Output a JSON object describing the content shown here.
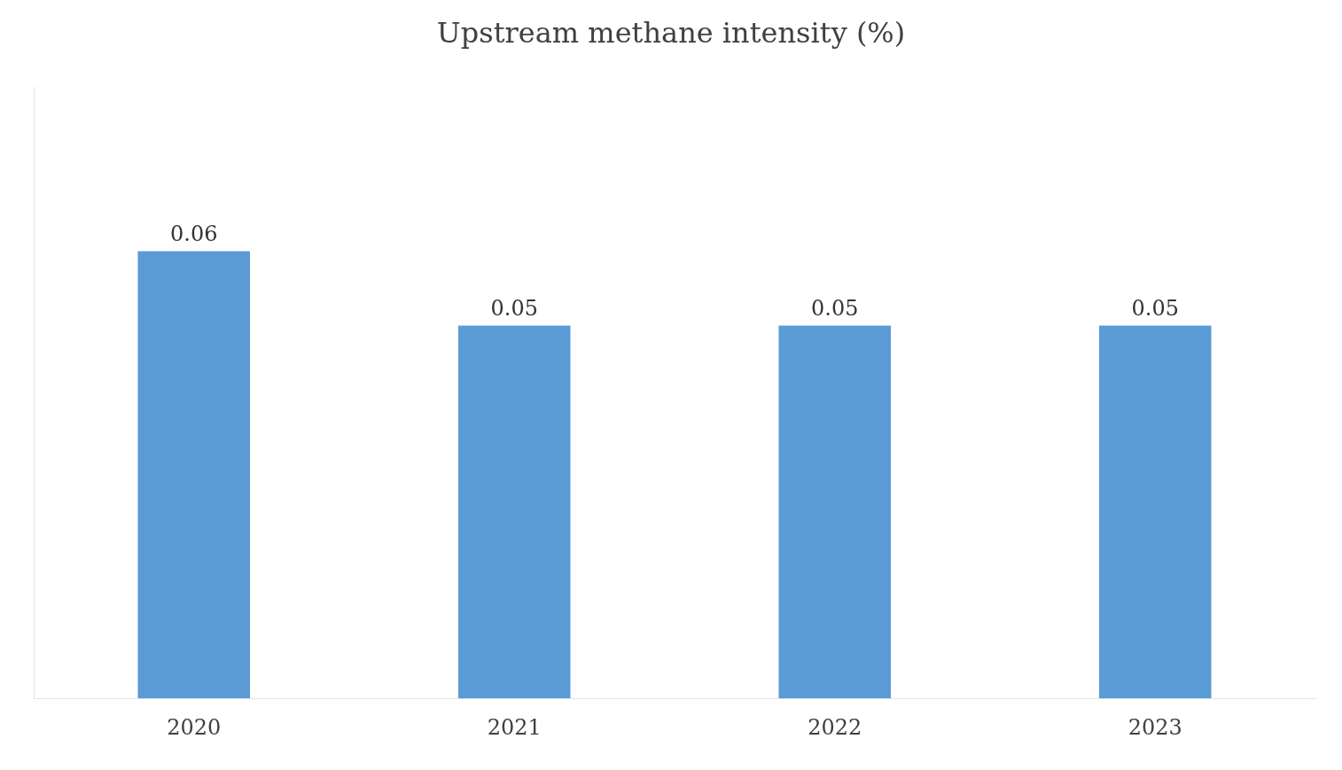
{
  "chart_data": {
    "type": "bar",
    "title": "Upstream methane intensity (%)",
    "categories": [
      "2020",
      "2021",
      "2022",
      "2023"
    ],
    "values": [
      0.06,
      0.05,
      0.05,
      0.05
    ],
    "color": "#5B9BD5",
    "ylim": [
      0,
      0.082
    ],
    "yticks": [],
    "grid": false,
    "data_labels": true,
    "tick_labels": "x"
  }
}
